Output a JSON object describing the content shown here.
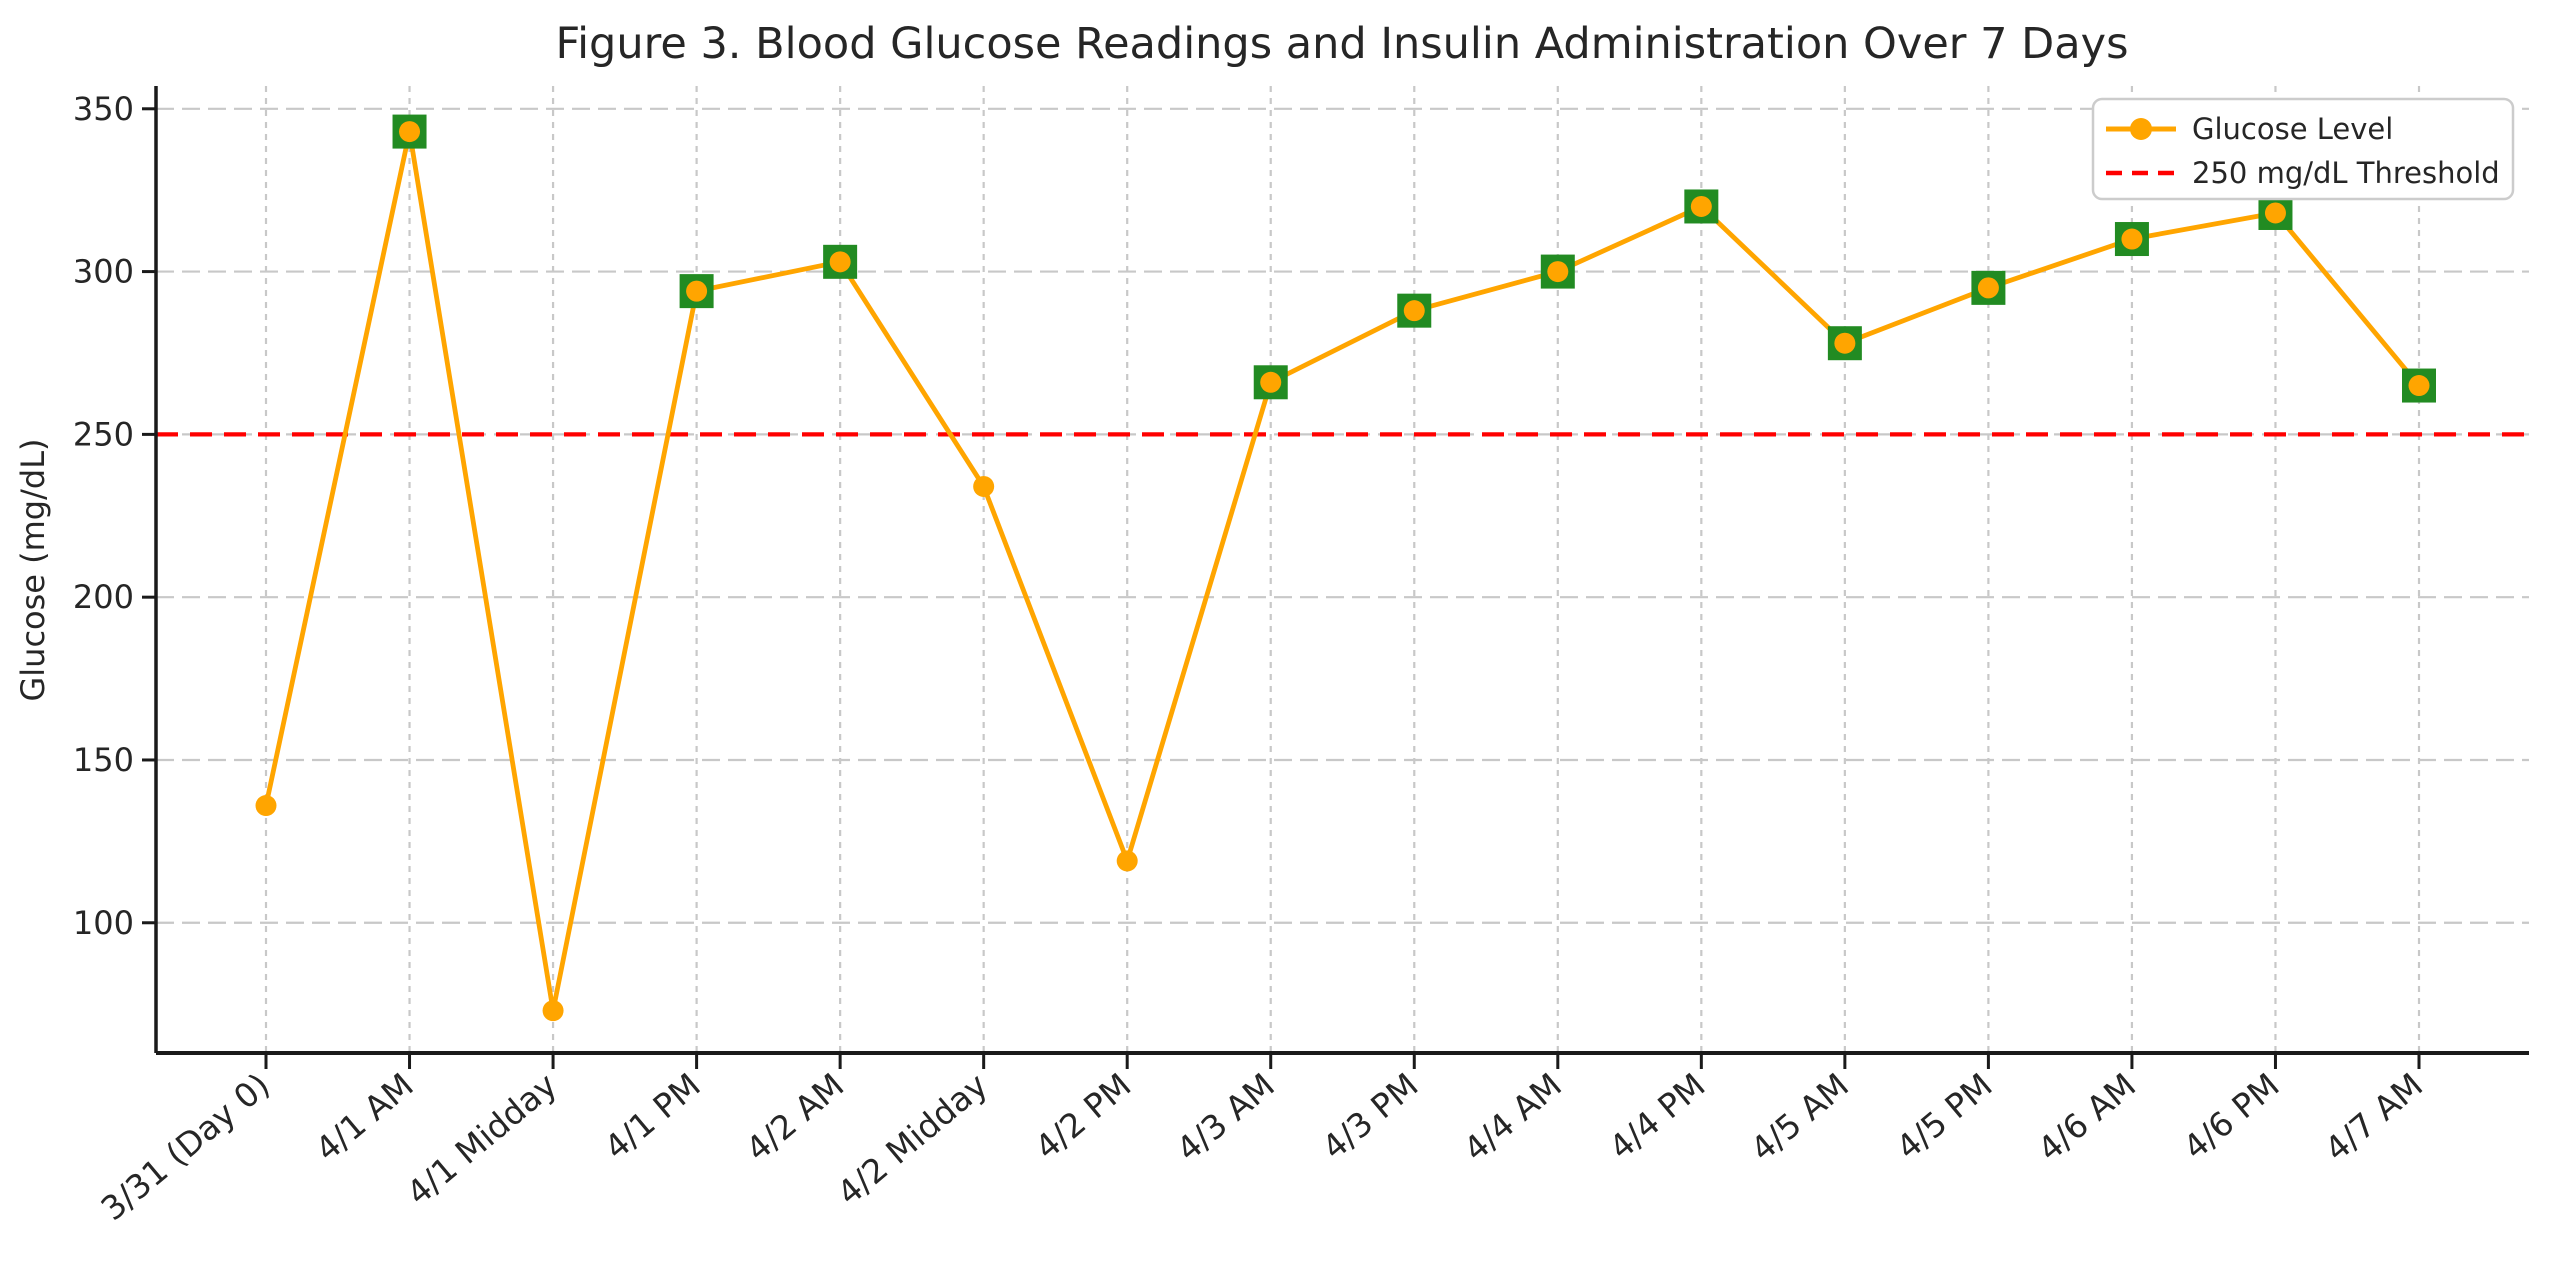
{
  "figure": {
    "title": "Figure 3. Blood Glucose Readings and Insulin Administration Over 7 Days"
  },
  "chart_data": {
    "type": "line",
    "title": "Figure 3. Blood Glucose Readings and Insulin Administration Over 7 Days",
    "xlabel": "",
    "ylabel": "Glucose (mg/dL)",
    "categories": [
      "3/31 (Day 0)",
      "4/1 AM",
      "4/1 Midday",
      "4/1 PM",
      "4/2 AM",
      "4/2 Midday",
      "4/2 PM",
      "4/3 AM",
      "4/3 PM",
      "4/4 AM",
      "4/4 PM",
      "4/5 AM",
      "4/5 PM",
      "4/6 AM",
      "4/6 PM",
      "4/7 AM"
    ],
    "series": [
      {
        "name": "Glucose Level",
        "color": "#FFA500",
        "marker": "circle",
        "values": [
          136,
          343,
          73,
          294,
          303,
          234,
          119,
          266,
          288,
          300,
          320,
          278,
          295,
          310,
          318,
          265
        ]
      }
    ],
    "insulin_markers": {
      "marker": "square",
      "color": "#228B22",
      "indices": [
        1,
        3,
        4,
        7,
        8,
        9,
        10,
        11,
        12,
        13,
        14,
        15
      ]
    },
    "threshold": {
      "value": 250,
      "label": "250 mg/dL Threshold",
      "color": "#FF0000",
      "style": "dashed"
    },
    "yticks": [
      100,
      150,
      200,
      250,
      300,
      350
    ],
    "ylim": [
      60,
      357
    ],
    "grid": true,
    "grid_color": "#C8C8C8",
    "axis_color": "#1A1A1A",
    "legend": {
      "position": "upper right",
      "entries": [
        "Glucose Level",
        "250 mg/dL Threshold"
      ]
    }
  }
}
